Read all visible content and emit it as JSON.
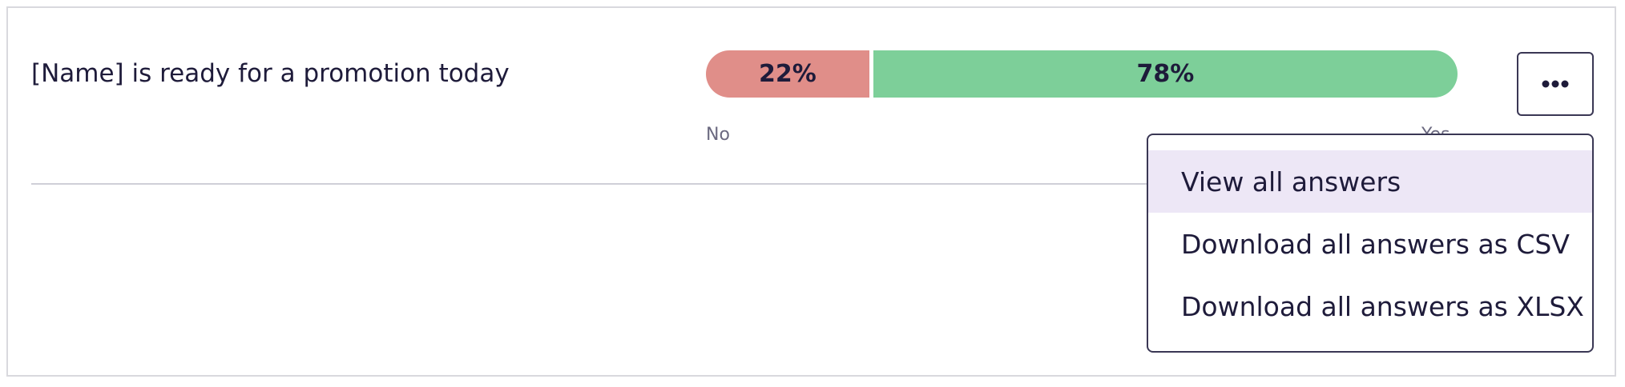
{
  "question": "[Name] is ready for a promotion today",
  "bar": {
    "values": [
      22,
      78
    ],
    "value_labels": [
      "22%",
      "78%"
    ],
    "colors": [
      "#e08e89",
      "#7dcf99"
    ],
    "scale_labels": [
      "No",
      "Yes"
    ]
  },
  "menu": {
    "items": [
      "View all answers",
      "Download all answers as CSV",
      "Download all answers as XLSX"
    ]
  }
}
